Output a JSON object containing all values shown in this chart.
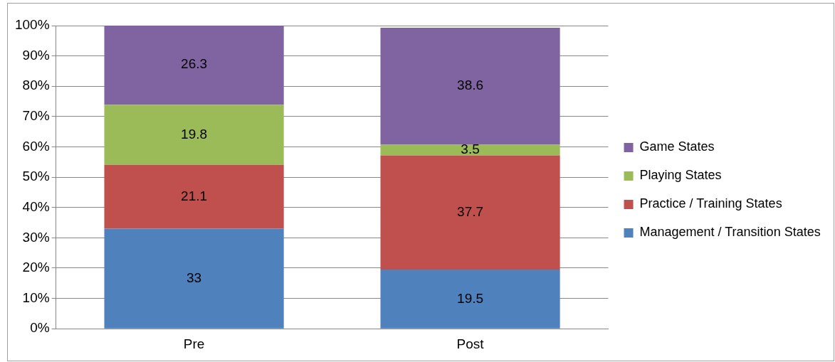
{
  "chart_data": {
    "type": "bar",
    "stacked": true,
    "categories": [
      "Pre",
      "Post"
    ],
    "series": [
      {
        "name": "Management / Transition States",
        "color": "#4f81bd",
        "values": [
          33,
          19.5
        ]
      },
      {
        "name": "Practice / Training States",
        "color": "#c0504d",
        "values": [
          21.1,
          37.7
        ]
      },
      {
        "name": "Playing States",
        "color": "#9bbb59",
        "values": [
          19.8,
          3.5
        ]
      },
      {
        "name": "Game States",
        "color": "#8064a2",
        "values": [
          26.3,
          38.6
        ]
      }
    ],
    "ylim": [
      0,
      100
    ],
    "yticks": [
      {
        "value": 0,
        "label": "0%"
      },
      {
        "value": 10,
        "label": "10%"
      },
      {
        "value": 20,
        "label": "20%"
      },
      {
        "value": 30,
        "label": "30%"
      },
      {
        "value": 40,
        "label": "40%"
      },
      {
        "value": 50,
        "label": "50%"
      },
      {
        "value": 60,
        "label": "60%"
      },
      {
        "value": 70,
        "label": "70%"
      },
      {
        "value": 80,
        "label": "80%"
      },
      {
        "value": 90,
        "label": "90%"
      },
      {
        "value": 100,
        "label": "100%"
      }
    ],
    "grid": "y",
    "legend": "right",
    "data_labels": true
  }
}
